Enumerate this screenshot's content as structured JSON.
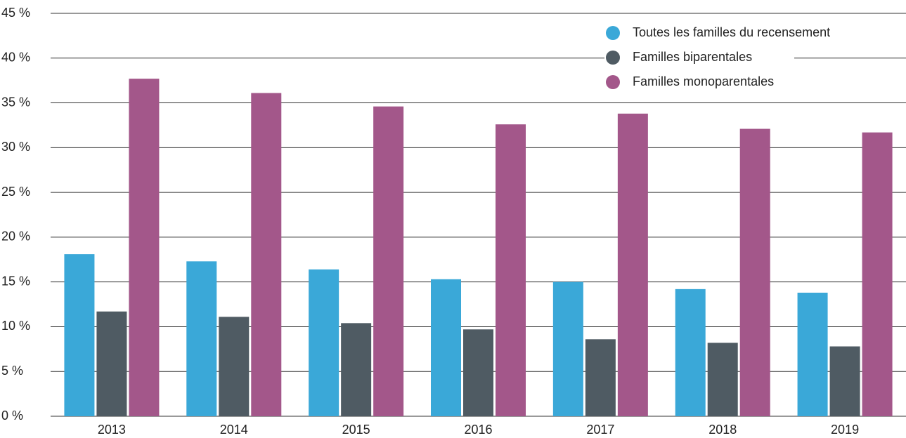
{
  "chart_data": {
    "type": "bar",
    "categories": [
      "2013",
      "2014",
      "2015",
      "2016",
      "2017",
      "2018",
      "2019"
    ],
    "series": [
      {
        "name": "Toutes les familles du recensement",
        "color": "#3aa8d8",
        "values": [
          18.1,
          17.3,
          16.4,
          15.3,
          15.0,
          14.2,
          13.8
        ]
      },
      {
        "name": "Familles biparentales",
        "color": "#4f5b63",
        "values": [
          11.7,
          11.1,
          10.4,
          9.7,
          8.6,
          8.2,
          7.8
        ]
      },
      {
        "name": "Familles monoparentales",
        "color": "#a3578a",
        "values": [
          37.7,
          36.1,
          34.6,
          32.6,
          33.8,
          32.1,
          31.7
        ]
      }
    ],
    "ylim": [
      0,
      45
    ],
    "yticks": [
      {
        "value": 0,
        "label": "0 %"
      },
      {
        "value": 5,
        "label": "5 %"
      },
      {
        "value": 10,
        "label": "10 %"
      },
      {
        "value": 15,
        "label": "15 %"
      },
      {
        "value": 20,
        "label": "20 %"
      },
      {
        "value": 25,
        "label": "25 %"
      },
      {
        "value": 30,
        "label": "30 %"
      },
      {
        "value": 35,
        "label": "35 %"
      },
      {
        "value": 40,
        "label": "40 %"
      },
      {
        "value": 45,
        "label": "45 %"
      }
    ],
    "grid": true,
    "legend": "top-right"
  }
}
